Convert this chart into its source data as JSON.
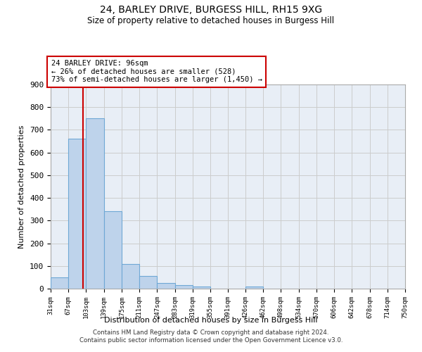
{
  "title1": "24, BARLEY DRIVE, BURGESS HILL, RH15 9XG",
  "title2": "Size of property relative to detached houses in Burgess Hill",
  "xlabel": "Distribution of detached houses by size in Burgess Hill",
  "ylabel": "Number of detached properties",
  "bin_edges": [
    31,
    67,
    103,
    139,
    175,
    211,
    247,
    283,
    319,
    355,
    391,
    426,
    462,
    498,
    534,
    570,
    606,
    642,
    678,
    714,
    750
  ],
  "bar_heights": [
    50,
    660,
    750,
    340,
    110,
    55,
    25,
    15,
    10,
    0,
    0,
    8,
    0,
    0,
    0,
    0,
    0,
    0,
    0,
    0
  ],
  "bar_color": "#bed3eb",
  "bar_edge_color": "#6fa8d5",
  "grid_color": "#cccccc",
  "background_color": "#e8eef6",
  "property_size": 96,
  "red_line_color": "#cc0000",
  "annotation_text": "24 BARLEY DRIVE: 96sqm\n← 26% of detached houses are smaller (528)\n73% of semi-detached houses are larger (1,450) →",
  "ylim": [
    0,
    900
  ],
  "yticks": [
    0,
    100,
    200,
    300,
    400,
    500,
    600,
    700,
    800,
    900
  ],
  "footer1": "Contains HM Land Registry data © Crown copyright and database right 2024.",
  "footer2": "Contains public sector information licensed under the Open Government Licence v3.0."
}
